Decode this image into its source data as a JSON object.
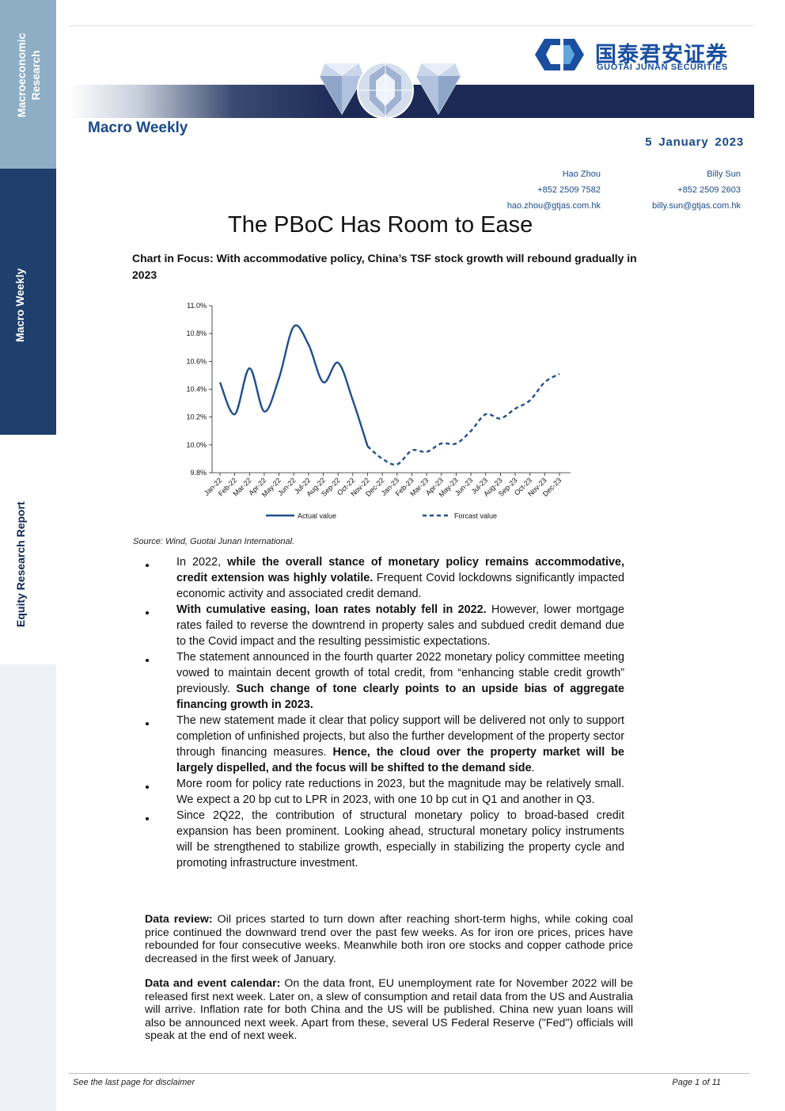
{
  "sidebar": {
    "section_1_line_1": "Macroeconomic",
    "section_1_line_2": "Research",
    "section_2": "Macro Weekly",
    "section_3": "Equity Research Report"
  },
  "header": {
    "logo_cn": "国泰君安证券",
    "logo_en": "GUOTAI JUNAN SECURITIES",
    "series": "Macro Weekly",
    "date": "5 January 2023"
  },
  "authors": [
    {
      "name": "Hao Zhou",
      "phone": "+852 2509 7582",
      "email": "hao.zhou@gtjas.com.hk"
    },
    {
      "name": "Billy Sun",
      "phone": "+852 2509 2603",
      "email": "billy.sun@gtjas.com.hk"
    }
  ],
  "title": "The PBoC Has Room to Ease",
  "chart_focus": "Chart in Focus: With accommodative policy, China’s TSF stock growth will rebound gradually in 2023",
  "chart_data": {
    "type": "line",
    "categories": [
      "Jan-22",
      "Feb-22",
      "Mar-22",
      "Apr-22",
      "May-22",
      "Jun-22",
      "Jul-22",
      "Aug-22",
      "Sep-22",
      "Oct-22",
      "Nov-22",
      "Dec-22",
      "Jan-23",
      "Feb-23",
      "Mar-23",
      "Apr-23",
      "May-23",
      "Jun-23",
      "Jul-23",
      "Aug-23",
      "Sep-23",
      "Oct-23",
      "Nov-23",
      "Dec-23"
    ],
    "y_ticks": [
      "9.8%",
      "10.0%",
      "10.2%",
      "10.4%",
      "10.6%",
      "10.8%",
      "11.0%"
    ],
    "ylim": [
      9.8,
      11.0
    ],
    "series": [
      {
        "name": "Actual value",
        "style": "solid",
        "color": "#1f4e8c",
        "values": [
          10.45,
          10.22,
          10.55,
          10.24,
          10.48,
          10.85,
          10.72,
          10.45,
          10.59,
          10.32,
          9.99,
          null,
          null,
          null,
          null,
          null,
          null,
          null,
          null,
          null,
          null,
          null,
          null,
          null
        ]
      },
      {
        "name": "Forcast value",
        "style": "dashed",
        "color": "#1f4e8c",
        "values": [
          null,
          null,
          null,
          null,
          null,
          null,
          null,
          null,
          null,
          null,
          9.99,
          9.9,
          9.86,
          9.96,
          9.95,
          10.01,
          10.01,
          10.1,
          10.22,
          10.19,
          10.26,
          10.32,
          10.45,
          10.51
        ]
      }
    ],
    "legend": "bottom",
    "grid": false
  },
  "source": "Source: Wind, Guotai Junan International.",
  "bullets": [
    {
      "segments": [
        {
          "text": "In 2022, ",
          "bold": false
        },
        {
          "text": "while the overall stance of monetary policy remains accommodative, credit extension was highly volatile.",
          "bold": true
        },
        {
          "text": " Frequent Covid lockdowns significantly impacted economic activity and associated credit demand.",
          "bold": false
        }
      ]
    },
    {
      "segments": [
        {
          "text": "With cumulative easing, loan rates notably fell in 2022.",
          "bold": true
        },
        {
          "text": " However, lower mortgage rates failed to reverse the downtrend in property sales and subdued credit demand due to the Covid impact and the resulting pessimistic expectations.",
          "bold": false
        }
      ]
    },
    {
      "segments": [
        {
          "text": "The statement announced in the fourth quarter 2022 monetary policy committee meeting vowed to maintain decent growth of total credit, from “enhancing stable credit growth” previously. ",
          "bold": false
        },
        {
          "text": "Such change of tone clearly points to an upside bias of aggregate financing growth in 2023.",
          "bold": true
        }
      ]
    },
    {
      "segments": [
        {
          "text": "The new statement made it clear that policy support will be delivered not only to support completion of unfinished projects, but also the further development of the property sector through financing measures. ",
          "bold": false
        },
        {
          "text": "Hence, the cloud over the property market will be largely dispelled, and the focus will be shifted to the demand side",
          "bold": true
        },
        {
          "text": ".",
          "bold": false
        }
      ]
    },
    {
      "segments": [
        {
          "text": "More room for policy rate reductions in 2023, but the magnitude may be relatively small. We expect a 20 bp cut to LPR in 2023, with one 10 bp cut in Q1 and another in Q3.",
          "bold": false
        }
      ]
    },
    {
      "segments": [
        {
          "text": "Since 2Q22, the contribution of structural monetary policy to broad-based credit expansion has been prominent. Looking ahead, structural monetary policy instruments will be strengthened to stabilize growth, especially in stabilizing the property cycle and promoting infrastructure investment.",
          "bold": false
        }
      ]
    }
  ],
  "data_review": {
    "label": "Data review:",
    "text": " Oil prices started to turn down after reaching short-term highs, while coking coal price continued the downward trend over the past few weeks. As for iron ore prices, prices have rebounded for four consecutive weeks. Meanwhile both iron ore stocks and copper cathode price decreased in the first week of January."
  },
  "event_calendar": {
    "label": "Data and event calendar:",
    "text": " On the data front, EU unemployment rate for November 2022 will be released first next week. Later on, a slew of consumption and retail data from the US and Australia will arrive. Inflation rate for both China and the US will be published. China new yuan loans will also be announced next week. Apart from these, several US Federal Reserve (\"Fed\") officials will speak at the end of next week."
  },
  "footer": {
    "disclaimer": "See the last page for disclaimer",
    "page": "Page 1 of 11"
  }
}
